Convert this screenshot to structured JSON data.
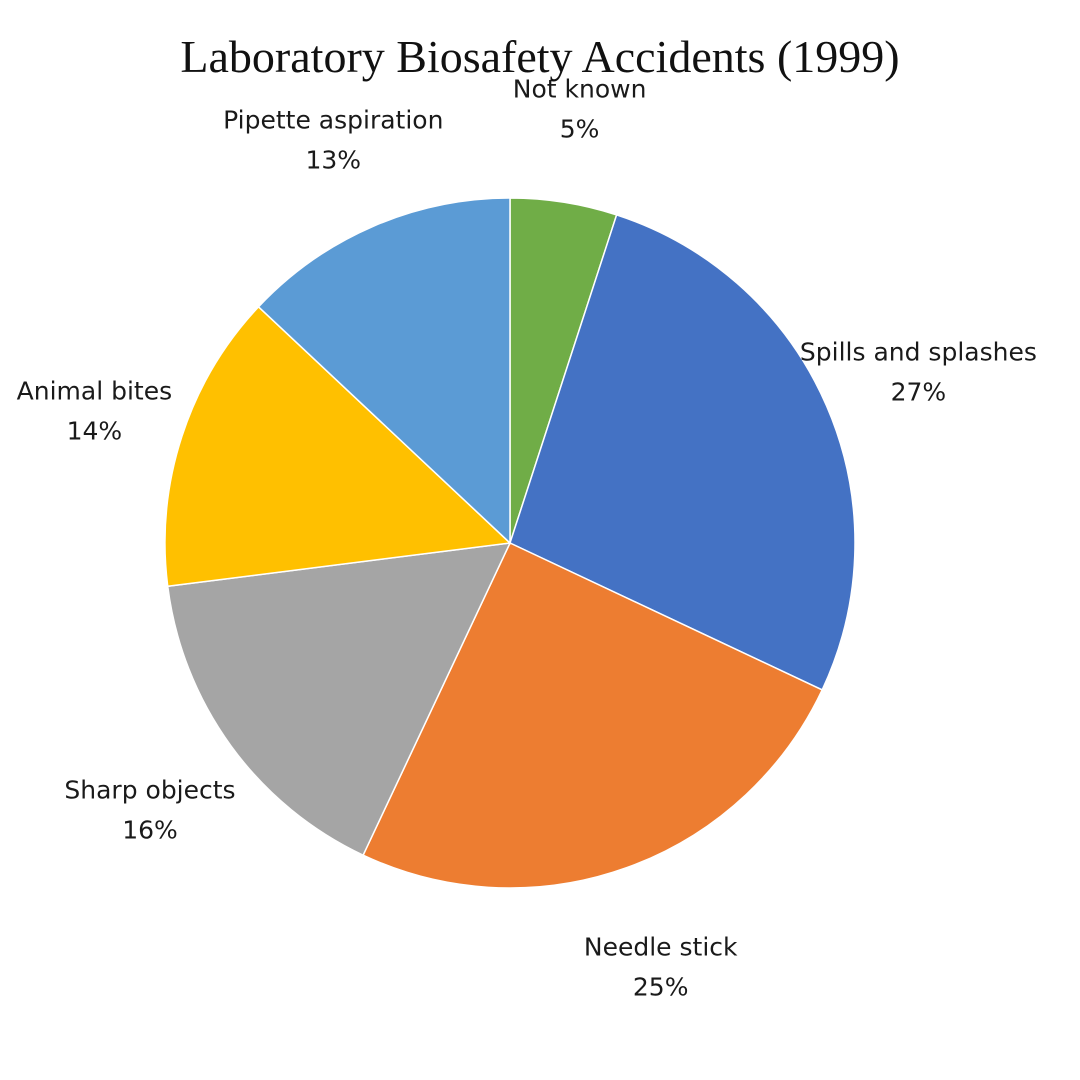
{
  "chart_data": {
    "type": "pie",
    "title": "Laboratory Biosafety Accidents (1999)",
    "start_angle_deg": 0,
    "direction": "clockwise",
    "slices": [
      {
        "label": "Not known",
        "value": 5,
        "value_label": "5%",
        "color": "#70AD47"
      },
      {
        "label": "Spills and splashes",
        "value": 27,
        "value_label": "27%",
        "color": "#4472C4"
      },
      {
        "label": "Needle stick",
        "value": 25,
        "value_label": "25%",
        "color": "#ED7D31"
      },
      {
        "label": "Sharp objects",
        "value": 16,
        "value_label": "16%",
        "color": "#A5A5A5"
      },
      {
        "label": "Animal bites",
        "value": 14,
        "value_label": "14%",
        "color": "#FFC000"
      },
      {
        "label": "Pipette aspiration",
        "value": 13,
        "value_label": "13%",
        "color": "#5B9BD5"
      }
    ]
  }
}
